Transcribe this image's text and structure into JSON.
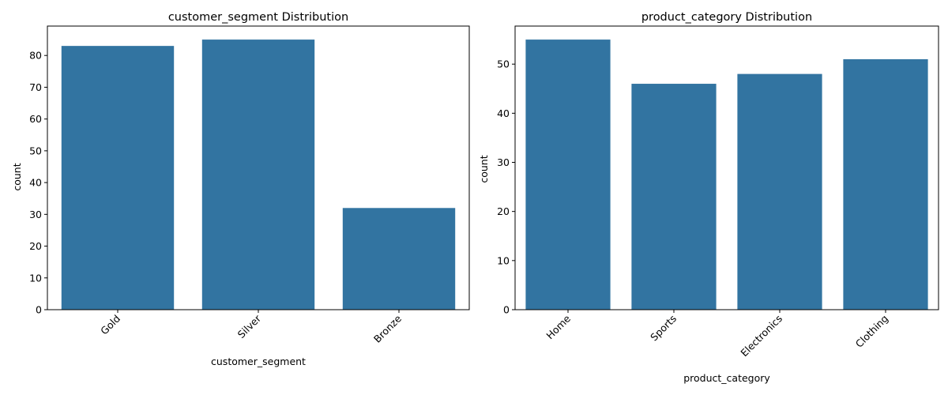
{
  "chart_data": [
    {
      "type": "bar",
      "title": "customer_segment Distribution",
      "xlabel": "customer_segment",
      "ylabel": "count",
      "categories": [
        "Gold",
        "Silver",
        "Bronze"
      ],
      "values": [
        83,
        85,
        32
      ],
      "ylim": [
        0,
        89.25
      ],
      "yticks": [
        0,
        10,
        20,
        30,
        40,
        50,
        60,
        70,
        80
      ],
      "color": "#3274a1",
      "grid": false,
      "xtick_rotation": 45
    },
    {
      "type": "bar",
      "title": "product_category Distribution",
      "xlabel": "product_category",
      "ylabel": "count",
      "categories": [
        "Home",
        "Sports",
        "Electronics",
        "Clothing"
      ],
      "values": [
        55,
        46,
        48,
        51
      ],
      "ylim": [
        0,
        57.75
      ],
      "yticks": [
        0,
        10,
        20,
        30,
        40,
        50
      ],
      "color": "#3274a1",
      "grid": false,
      "xtick_rotation": 45
    }
  ]
}
